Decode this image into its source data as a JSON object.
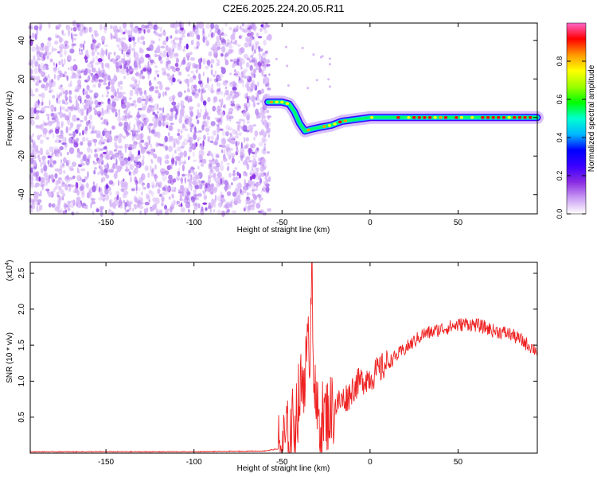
{
  "title": "C2E6.2025.224.20.05.R11",
  "chart_data": [
    {
      "type": "heatmap",
      "xlabel": "Height of straight line (km)",
      "ylabel": "Frequency (Hz)",
      "xlim": [
        -193,
        95
      ],
      "ylim": [
        -50,
        49
      ],
      "x_ticks": [
        -150,
        -100,
        -50,
        0,
        50
      ],
      "y_ticks": [
        -40,
        -20,
        0,
        20,
        40
      ],
      "colorbar": {
        "label": "Normalized spectral amplitude",
        "range": [
          0,
          1
        ],
        "ticks": [
          0.0,
          0.2,
          0.4,
          0.6,
          0.8
        ],
        "tick_labels": [
          "0.0",
          "0.2",
          "0.4",
          "0.6",
          "0.8"
        ],
        "colormap": [
          "#ffffff",
          "#c99cf4",
          "#8a2be2",
          "#3a00ff",
          "#0000ff",
          "#00b8ff",
          "#00ffd0",
          "#00ff00",
          "#9cff00",
          "#ffff00",
          "#ff9900",
          "#ff0000",
          "#ff66cc"
        ]
      },
      "noise_region_x": [
        -193,
        -57
      ],
      "signal_track": [
        {
          "x": -58,
          "y": 8
        },
        {
          "x": -54,
          "y": 8
        },
        {
          "x": -50,
          "y": 8
        },
        {
          "x": -46,
          "y": 7
        },
        {
          "x": -43,
          "y": 3
        },
        {
          "x": -40,
          "y": -3
        },
        {
          "x": -37,
          "y": -7
        },
        {
          "x": -33,
          "y": -6
        },
        {
          "x": -28,
          "y": -5
        },
        {
          "x": -22,
          "y": -4
        },
        {
          "x": -16,
          "y": -2
        },
        {
          "x": -8,
          "y": -1
        },
        {
          "x": 0,
          "y": 0
        },
        {
          "x": 10,
          "y": 0
        },
        {
          "x": 25,
          "y": 0
        },
        {
          "x": 40,
          "y": 0
        },
        {
          "x": 55,
          "y": 0
        },
        {
          "x": 70,
          "y": 0
        },
        {
          "x": 85,
          "y": 0
        },
        {
          "x": 95,
          "y": 0
        }
      ]
    },
    {
      "type": "line",
      "xlabel": "Height of straight line (km)",
      "ylabel": "SNR (10 * v/v)",
      "y_multiplier": "(x10",
      "y_multiplier_exp": "4",
      "y_multiplier_close": ")",
      "xlim": [
        -193,
        95
      ],
      "ylim": [
        0,
        2.65
      ],
      "x_ticks": [
        -150,
        -100,
        -50,
        0,
        50
      ],
      "y_ticks": [
        0.5,
        1.0,
        1.5,
        2.0,
        2.5
      ],
      "y_tick_labels": [
        "0.5",
        "1.0",
        "1.5",
        "2.0",
        "2.5"
      ],
      "color": "#ee2222",
      "series": [
        {
          "x": [
            -193,
            -150,
            -100,
            -60,
            -52,
            -48,
            -45,
            -42,
            -40,
            -38,
            -36,
            -34,
            -33,
            -32,
            -31,
            -30,
            -28,
            -26,
            -24,
            -22,
            -20,
            -18,
            -15,
            -12,
            -10,
            -8,
            -5,
            -2,
            0,
            5,
            10,
            15,
            20,
            25,
            30,
            35,
            40,
            45,
            50,
            55,
            60,
            65,
            70,
            75,
            80,
            85,
            90,
            95
          ],
          "y": [
            0.02,
            0.02,
            0.02,
            0.03,
            0.06,
            0.15,
            0.3,
            0.55,
            0.8,
            1.05,
            1.25,
            1.6,
            2.65,
            1.2,
            0.6,
            0.5,
            0.45,
            0.5,
            0.55,
            0.6,
            0.65,
            0.7,
            0.75,
            0.8,
            0.9,
            0.95,
            1.0,
            1.05,
            1.05,
            1.15,
            1.25,
            1.35,
            1.45,
            1.55,
            1.65,
            1.68,
            1.72,
            1.75,
            1.78,
            1.8,
            1.78,
            1.75,
            1.7,
            1.68,
            1.65,
            1.58,
            1.5,
            1.42
          ]
        }
      ]
    }
  ]
}
